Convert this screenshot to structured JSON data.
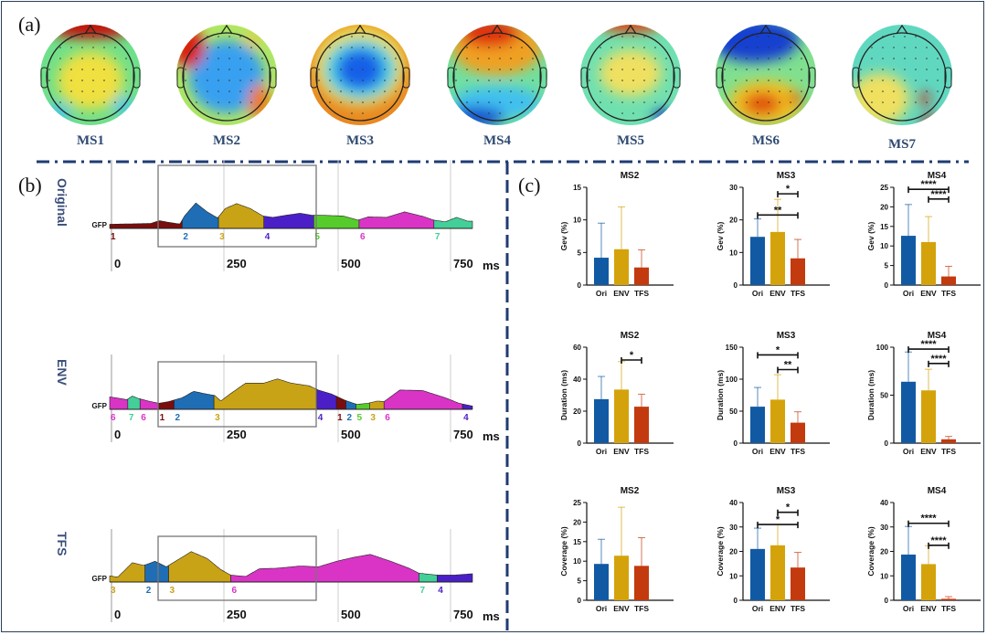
{
  "panels": {
    "a": "(a)",
    "b": "(b)",
    "c": "(c)"
  },
  "colors": {
    "frame": "#2c3e5a",
    "separator": "#1f3b73",
    "ms": {
      "1": "#7a0d0d",
      "2": "#1f6db5",
      "3": "#c9a316",
      "4": "#4b1fc8",
      "5": "#56cc2c",
      "6": "#d934c6",
      "7": "#43cf98"
    },
    "bars": {
      "Ori": "#115aa3",
      "ENV": "#d4a30b",
      "TFS": "#c23a0e"
    }
  },
  "topomaps": [
    {
      "label": "MS1",
      "pattern": "frontal-positive"
    },
    {
      "label": "MS2",
      "pattern": "central-negative"
    },
    {
      "label": "MS3",
      "pattern": "central-negative-ring"
    },
    {
      "label": "MS4",
      "pattern": "frontal-right-positive-occipital-negative"
    },
    {
      "label": "MS5",
      "pattern": "diffuse-neutral"
    },
    {
      "label": "MS6",
      "pattern": "frontal-negative-parietal-positive"
    },
    {
      "label": "MS7",
      "pattern": "right-parietal-focal-positive"
    }
  ],
  "gfp": {
    "gfp_label": "GFP",
    "unit": "ms",
    "ticks": [
      "0",
      "250",
      "500",
      "750"
    ],
    "duration_ms": 800,
    "highlight_window_ms": [
      108,
      460
    ],
    "rows": [
      {
        "name": "Original",
        "segments": [
          {
            "ms": 1,
            "start": 0,
            "end": 160
          },
          {
            "ms": 2,
            "start": 160,
            "end": 240
          },
          {
            "ms": 3,
            "start": 240,
            "end": 340
          },
          {
            "ms": 4,
            "start": 340,
            "end": 450
          },
          {
            "ms": 5,
            "start": 450,
            "end": 550
          },
          {
            "ms": 6,
            "start": 550,
            "end": 715
          },
          {
            "ms": 7,
            "start": 715,
            "end": 800
          }
        ],
        "profile": [
          [
            0,
            0.15
          ],
          [
            90,
            0.18
          ],
          [
            110,
            0.28
          ],
          [
            130,
            0.22
          ],
          [
            155,
            0.16
          ],
          [
            165,
            0.45
          ],
          [
            190,
            0.92
          ],
          [
            215,
            0.6
          ],
          [
            238,
            0.38
          ],
          [
            255,
            0.72
          ],
          [
            280,
            0.9
          ],
          [
            310,
            0.72
          ],
          [
            338,
            0.45
          ],
          [
            360,
            0.4
          ],
          [
            390,
            0.48
          ],
          [
            420,
            0.55
          ],
          [
            445,
            0.48
          ],
          [
            480,
            0.47
          ],
          [
            515,
            0.45
          ],
          [
            548,
            0.3
          ],
          [
            570,
            0.42
          ],
          [
            610,
            0.4
          ],
          [
            650,
            0.6
          ],
          [
            690,
            0.44
          ],
          [
            715,
            0.3
          ],
          [
            740,
            0.24
          ],
          [
            765,
            0.4
          ],
          [
            790,
            0.26
          ],
          [
            800,
            0.26
          ]
        ]
      },
      {
        "name": "ENV",
        "segments": [
          {
            "ms": 6,
            "start": 0,
            "end": 40
          },
          {
            "ms": 7,
            "start": 40,
            "end": 67
          },
          {
            "ms": 6,
            "start": 67,
            "end": 108
          },
          {
            "ms": 1,
            "start": 108,
            "end": 142
          },
          {
            "ms": 2,
            "start": 142,
            "end": 230
          },
          {
            "ms": 3,
            "start": 230,
            "end": 457
          },
          {
            "ms": 4,
            "start": 457,
            "end": 500
          },
          {
            "ms": 1,
            "start": 500,
            "end": 521
          },
          {
            "ms": 2,
            "start": 521,
            "end": 543
          },
          {
            "ms": 5,
            "start": 543,
            "end": 573
          },
          {
            "ms": 3,
            "start": 573,
            "end": 605
          },
          {
            "ms": 6,
            "start": 605,
            "end": 778
          },
          {
            "ms": 4,
            "start": 778,
            "end": 800
          }
        ],
        "profile": [
          [
            0,
            0.45
          ],
          [
            20,
            0.4
          ],
          [
            38,
            0.35
          ],
          [
            50,
            0.48
          ],
          [
            62,
            0.4
          ],
          [
            90,
            0.28
          ],
          [
            108,
            0.22
          ],
          [
            130,
            0.28
          ],
          [
            160,
            0.42
          ],
          [
            185,
            0.65
          ],
          [
            215,
            0.55
          ],
          [
            232,
            0.5
          ],
          [
            245,
            0.3
          ],
          [
            265,
            0.55
          ],
          [
            300,
            0.95
          ],
          [
            340,
            0.95
          ],
          [
            370,
            1.1
          ],
          [
            400,
            0.95
          ],
          [
            440,
            0.85
          ],
          [
            460,
            0.7
          ],
          [
            490,
            0.55
          ],
          [
            520,
            0.32
          ],
          [
            545,
            0.18
          ],
          [
            570,
            0.22
          ],
          [
            590,
            0.3
          ],
          [
            605,
            0.28
          ],
          [
            640,
            0.7
          ],
          [
            690,
            0.68
          ],
          [
            740,
            0.42
          ],
          [
            770,
            0.22
          ],
          [
            800,
            0.12
          ]
        ]
      },
      {
        "name": "TFS",
        "segments": [
          {
            "ms": 3,
            "start": 0,
            "end": 78
          },
          {
            "ms": 2,
            "start": 78,
            "end": 130
          },
          {
            "ms": 3,
            "start": 130,
            "end": 267
          },
          {
            "ms": 6,
            "start": 267,
            "end": 682
          },
          {
            "ms": 7,
            "start": 682,
            "end": 722
          },
          {
            "ms": 4,
            "start": 722,
            "end": 800
          }
        ],
        "profile": [
          [
            0,
            0.22
          ],
          [
            18,
            0.18
          ],
          [
            50,
            0.7
          ],
          [
            75,
            0.6
          ],
          [
            100,
            0.75
          ],
          [
            125,
            0.55
          ],
          [
            150,
            0.8
          ],
          [
            180,
            1.1
          ],
          [
            215,
            0.85
          ],
          [
            245,
            0.45
          ],
          [
            267,
            0.25
          ],
          [
            300,
            0.2
          ],
          [
            330,
            0.48
          ],
          [
            370,
            0.5
          ],
          [
            420,
            0.58
          ],
          [
            460,
            0.55
          ],
          [
            500,
            0.75
          ],
          [
            540,
            0.9
          ],
          [
            575,
            1.0
          ],
          [
            620,
            0.75
          ],
          [
            660,
            0.5
          ],
          [
            682,
            0.32
          ],
          [
            722,
            0.25
          ],
          [
            760,
            0.25
          ],
          [
            800,
            0.3
          ]
        ]
      }
    ]
  },
  "chart_data": [
    {
      "type": "bar",
      "title": "MS2",
      "ylabel": "Gev (%)",
      "categories": [
        "Ori",
        "ENV",
        "TFS"
      ],
      "values": [
        4.2,
        5.5,
        2.7
      ],
      "errors": [
        5.3,
        6.5,
        2.7
      ],
      "ylim": [
        0,
        15
      ],
      "yticks": [
        0,
        5,
        10,
        15
      ],
      "significance": []
    },
    {
      "type": "bar",
      "title": "MS3",
      "ylabel": "Gev (%)",
      "categories": [
        "Ori",
        "ENV",
        "TFS"
      ],
      "values": [
        14.8,
        16.3,
        8.2
      ],
      "errors": [
        5.5,
        10.0,
        5.8
      ],
      "ylim": [
        0,
        30
      ],
      "yticks": [
        0,
        10,
        20,
        30
      ],
      "significance": [
        {
          "from": "ENV",
          "to": "TFS",
          "label": "*",
          "level": 28
        },
        {
          "from": "Ori",
          "to": "TFS",
          "label": "**",
          "level": 21.5
        }
      ]
    },
    {
      "type": "bar",
      "title": "MS4",
      "ylabel": "Gev (%)",
      "categories": [
        "Ori",
        "ENV",
        "TFS"
      ],
      "values": [
        12.6,
        11.0,
        2.2
      ],
      "errors": [
        8.0,
        6.5,
        2.6
      ],
      "ylim": [
        0,
        25
      ],
      "yticks": [
        0,
        5,
        10,
        15,
        20,
        25
      ],
      "significance": [
        {
          "from": "Ori",
          "to": "TFS",
          "label": "****",
          "level": 24.5
        },
        {
          "from": "ENV",
          "to": "TFS",
          "label": "****",
          "level": 22
        }
      ]
    },
    {
      "type": "bar",
      "title": "MS2",
      "ylabel": "Duration (ms)",
      "categories": [
        "Ori",
        "ENV",
        "TFS"
      ],
      "values": [
        27.5,
        33.5,
        22.8
      ],
      "errors": [
        14.2,
        17.5,
        7.8
      ],
      "ylim": [
        0,
        60
      ],
      "yticks": [
        0,
        20,
        40,
        60
      ],
      "significance": [
        {
          "from": "ENV",
          "to": "TFS",
          "label": "*",
          "level": 52
        }
      ]
    },
    {
      "type": "bar",
      "title": "MS3",
      "ylabel": "Duration (ms)",
      "categories": [
        "Ori",
        "ENV",
        "TFS"
      ],
      "values": [
        57,
        68,
        32
      ],
      "errors": [
        30,
        39,
        17
      ],
      "ylim": [
        0,
        150
      ],
      "yticks": [
        0,
        50,
        100,
        150
      ],
      "significance": [
        {
          "from": "Ori",
          "to": "TFS",
          "label": "*",
          "level": 138
        },
        {
          "from": "ENV",
          "to": "TFS",
          "label": "**",
          "level": 115
        }
      ]
    },
    {
      "type": "bar",
      "title": "MS4",
      "ylabel": "Duration (ms)",
      "categories": [
        "Ori",
        "ENV",
        "TFS"
      ],
      "values": [
        64,
        55,
        4
      ],
      "errors": [
        31,
        22,
        3
      ],
      "ylim": [
        0,
        100
      ],
      "yticks": [
        0,
        50,
        100
      ],
      "significance": [
        {
          "from": "Ori",
          "to": "TFS",
          "label": "****",
          "level": 98
        },
        {
          "from": "ENV",
          "to": "TFS",
          "label": "****",
          "level": 83
        }
      ]
    },
    {
      "type": "bar",
      "title": "MS2",
      "ylabel": "Coverage (%)",
      "categories": [
        "Ori",
        "ENV",
        "TFS"
      ],
      "values": [
        9.3,
        11.4,
        8.8
      ],
      "errors": [
        6.3,
        12.4,
        7.2
      ],
      "ylim": [
        0,
        25
      ],
      "yticks": [
        0,
        5,
        10,
        15,
        20,
        25
      ],
      "significance": []
    },
    {
      "type": "bar",
      "title": "MS3",
      "ylabel": "Coverage (%)",
      "categories": [
        "Ori",
        "ENV",
        "TFS"
      ],
      "values": [
        21,
        22.5,
        13.4
      ],
      "errors": [
        8.5,
        8.5,
        6.2
      ],
      "ylim": [
        0,
        40
      ],
      "yticks": [
        0,
        10,
        20,
        30,
        40
      ],
      "significance": [
        {
          "from": "ENV",
          "to": "TFS",
          "label": "*",
          "level": 36
        },
        {
          "from": "Ori",
          "to": "TFS",
          "label": "*",
          "level": 31
        }
      ]
    },
    {
      "type": "bar",
      "title": "MS4",
      "ylabel": "Coverage (%)",
      "categories": [
        "Ori",
        "ENV",
        "TFS"
      ],
      "values": [
        18.7,
        14.8,
        0.6
      ],
      "errors": [
        11.5,
        7.5,
        0.9
      ],
      "ylim": [
        0,
        40
      ],
      "yticks": [
        0,
        10,
        20,
        30,
        40
      ],
      "significance": [
        {
          "from": "Ori",
          "to": "TFS",
          "label": "****",
          "level": 31.5
        },
        {
          "from": "ENV",
          "to": "TFS",
          "label": "****",
          "level": 22.5
        }
      ]
    }
  ]
}
